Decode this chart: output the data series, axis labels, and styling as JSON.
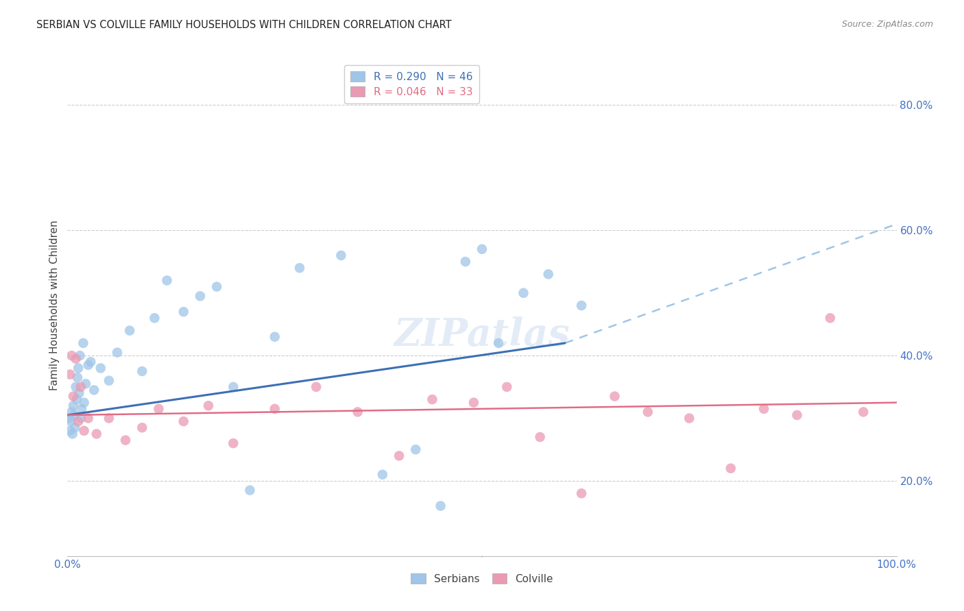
{
  "title": "SERBIAN VS COLVILLE FAMILY HOUSEHOLDS WITH CHILDREN CORRELATION CHART",
  "source": "Source: ZipAtlas.com",
  "ylabel": "Family Households with Children",
  "legend_blue_label": "R = 0.290   N = 46",
  "legend_pink_label": "R = 0.046   N = 33",
  "legend_serbian": "Serbians",
  "legend_colville": "Colville",
  "watermark": "ZIPatlas",
  "serbian_x": [
    0.2,
    0.3,
    0.4,
    0.5,
    0.6,
    0.7,
    0.8,
    0.9,
    1.0,
    1.1,
    1.2,
    1.3,
    1.4,
    1.5,
    1.6,
    1.7,
    1.9,
    2.0,
    2.2,
    2.5,
    2.8,
    3.2,
    4.0,
    5.0,
    6.0,
    7.5,
    9.0,
    10.5,
    12.0,
    14.0,
    16.0,
    18.0,
    20.0,
    22.0,
    25.0,
    28.0,
    33.0,
    38.0,
    42.0,
    45.0,
    48.0,
    50.0,
    52.0,
    55.0,
    58.0,
    62.0
  ],
  "serbian_y": [
    30.0,
    28.0,
    29.5,
    31.0,
    27.5,
    32.0,
    30.5,
    28.5,
    35.0,
    33.0,
    36.5,
    38.0,
    34.0,
    40.0,
    30.0,
    31.5,
    42.0,
    32.5,
    35.5,
    38.5,
    39.0,
    34.5,
    38.0,
    36.0,
    40.5,
    44.0,
    37.5,
    46.0,
    52.0,
    47.0,
    49.5,
    51.0,
    35.0,
    18.5,
    43.0,
    54.0,
    56.0,
    21.0,
    25.0,
    16.0,
    55.0,
    57.0,
    42.0,
    50.0,
    53.0,
    48.0
  ],
  "colville_x": [
    0.3,
    0.5,
    0.7,
    1.0,
    1.3,
    1.6,
    2.0,
    2.5,
    3.5,
    5.0,
    7.0,
    9.0,
    11.0,
    14.0,
    17.0,
    20.0,
    25.0,
    30.0,
    35.0,
    40.0,
    44.0,
    49.0,
    53.0,
    57.0,
    62.0,
    66.0,
    70.0,
    75.0,
    80.0,
    84.0,
    88.0,
    92.0,
    96.0
  ],
  "colville_y": [
    37.0,
    40.0,
    33.5,
    39.5,
    29.5,
    35.0,
    28.0,
    30.0,
    27.5,
    30.0,
    26.5,
    28.5,
    31.5,
    29.5,
    32.0,
    26.0,
    31.5,
    35.0,
    31.0,
    24.0,
    33.0,
    32.5,
    35.0,
    27.0,
    18.0,
    33.5,
    31.0,
    30.0,
    22.0,
    31.5,
    30.5,
    46.0,
    31.0
  ],
  "blue_scatter_color": "#9fc5e8",
  "pink_scatter_color": "#ea9ab2",
  "blue_line_color": "#3d6fb5",
  "pink_line_color": "#e06c85",
  "blue_dashed_color": "#9fc5e8",
  "bg_color": "#ffffff",
  "grid_color": "#cccccc",
  "title_color": "#222222",
  "axis_tick_color": "#4472c4",
  "ylabel_color": "#444444",
  "source_color": "#888888",
  "xmin": 0.0,
  "xmax": 100.0,
  "ymin": 8.0,
  "ymax": 88.0,
  "yticks": [
    20.0,
    40.0,
    60.0,
    80.0
  ],
  "ytick_labels": [
    "20.0%",
    "40.0%",
    "60.0%",
    "80.0%"
  ],
  "blue_line_x0": 0.0,
  "blue_line_y0": 30.5,
  "blue_line_x1": 60.0,
  "blue_line_y1": 42.0,
  "blue_dash_x0": 60.0,
  "blue_dash_y0": 42.0,
  "blue_dash_x1": 100.0,
  "blue_dash_y1": 61.0,
  "pink_line_x0": 0.0,
  "pink_line_y0": 30.5,
  "pink_line_x1": 100.0,
  "pink_line_y1": 32.5
}
